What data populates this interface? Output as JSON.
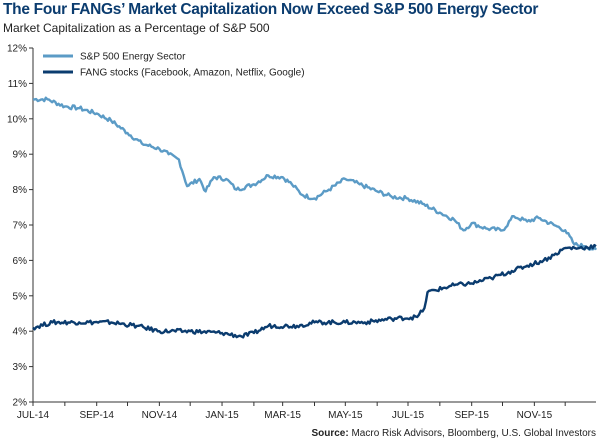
{
  "title": "The Four FANGs’ Market Capitalization Now Exceed S&P 500 Energy Sector",
  "subtitle": "Market Capitalization as a Percentage of S&P 500",
  "source_label": "Source:",
  "source_text": " Macro Risk Advisors, Bloomberg, U.S. Global Investors",
  "chart_data": {
    "type": "line",
    "title": "The Four FANGs’ Market Capitalization Now Exceed S&P 500 Energy Sector",
    "subtitle": "Market Capitalization as a Percentage of S&P 500",
    "x_tick_labels": [
      "JUL-14",
      "SEP-14",
      "NOV-14",
      "JAN-15",
      "MAR-15",
      "MAY-15",
      "JUL-15",
      "SEP-15",
      "NOV-15"
    ],
    "y_tick_labels": [
      "2%",
      "3%",
      "4%",
      "5%",
      "6%",
      "7%",
      "8%",
      "9%",
      "10%",
      "11%",
      "12%"
    ],
    "ylim": [
      2,
      12
    ],
    "xlim": [
      "2014-07-01",
      "2015-12-31"
    ],
    "grid": false,
    "legend_position": "top-left",
    "series": [
      {
        "name": "S&P 500 Energy Sector",
        "color": "#5b9bc6",
        "points": [
          [
            "2014-07-01",
            10.55
          ],
          [
            "2014-07-15",
            10.55
          ],
          [
            "2014-08-01",
            10.35
          ],
          [
            "2014-08-15",
            10.3
          ],
          [
            "2014-09-01",
            10.15
          ],
          [
            "2014-09-15",
            9.95
          ],
          [
            "2014-10-01",
            9.6
          ],
          [
            "2014-10-15",
            9.3
          ],
          [
            "2014-11-01",
            9.15
          ],
          [
            "2014-11-10",
            9.0
          ],
          [
            "2014-11-20",
            8.85
          ],
          [
            "2014-11-28",
            8.1
          ],
          [
            "2014-12-10",
            8.3
          ],
          [
            "2014-12-16",
            7.95
          ],
          [
            "2014-12-24",
            8.35
          ],
          [
            "2015-01-05",
            8.3
          ],
          [
            "2015-01-15",
            8.0
          ],
          [
            "2015-02-01",
            8.15
          ],
          [
            "2015-02-15",
            8.4
          ],
          [
            "2015-03-01",
            8.35
          ],
          [
            "2015-03-10",
            8.15
          ],
          [
            "2015-03-20",
            7.85
          ],
          [
            "2015-04-01",
            7.75
          ],
          [
            "2015-04-15",
            8.0
          ],
          [
            "2015-05-01",
            8.3
          ],
          [
            "2015-05-15",
            8.15
          ],
          [
            "2015-06-01",
            7.95
          ],
          [
            "2015-06-15",
            7.8
          ],
          [
            "2015-07-01",
            7.75
          ],
          [
            "2015-07-15",
            7.6
          ],
          [
            "2015-08-01",
            7.35
          ],
          [
            "2015-08-15",
            7.15
          ],
          [
            "2015-08-24",
            6.85
          ],
          [
            "2015-09-01",
            7.05
          ],
          [
            "2015-09-15",
            6.9
          ],
          [
            "2015-10-01",
            6.85
          ],
          [
            "2015-10-12",
            7.25
          ],
          [
            "2015-10-25",
            7.1
          ],
          [
            "2015-11-05",
            7.2
          ],
          [
            "2015-11-20",
            7.0
          ],
          [
            "2015-12-01",
            6.85
          ],
          [
            "2015-12-10",
            6.45
          ],
          [
            "2015-12-20",
            6.4
          ],
          [
            "2015-12-31",
            6.3
          ]
        ]
      },
      {
        "name": "FANG stocks (Facebook, Amazon, Netflix, Google)",
        "color": "#0b3c6f",
        "points": [
          [
            "2014-07-01",
            4.1
          ],
          [
            "2014-07-20",
            4.25
          ],
          [
            "2014-08-15",
            4.25
          ],
          [
            "2014-09-15",
            4.25
          ],
          [
            "2014-10-10",
            4.15
          ],
          [
            "2014-11-01",
            4.0
          ],
          [
            "2014-12-01",
            4.0
          ],
          [
            "2015-01-01",
            3.95
          ],
          [
            "2015-01-20",
            3.85
          ],
          [
            "2015-02-01",
            3.95
          ],
          [
            "2015-02-15",
            4.15
          ],
          [
            "2015-03-15",
            4.15
          ],
          [
            "2015-04-01",
            4.25
          ],
          [
            "2015-05-01",
            4.25
          ],
          [
            "2015-05-20",
            4.25
          ],
          [
            "2015-06-15",
            4.35
          ],
          [
            "2015-07-10",
            4.4
          ],
          [
            "2015-07-17",
            4.65
          ],
          [
            "2015-07-20",
            5.1
          ],
          [
            "2015-08-15",
            5.3
          ],
          [
            "2015-09-01",
            5.35
          ],
          [
            "2015-09-20",
            5.5
          ],
          [
            "2015-10-10",
            5.7
          ],
          [
            "2015-10-25",
            5.85
          ],
          [
            "2015-11-10",
            6.0
          ],
          [
            "2015-11-20",
            6.15
          ],
          [
            "2015-12-01",
            6.35
          ],
          [
            "2015-12-15",
            6.35
          ],
          [
            "2015-12-31",
            6.4
          ]
        ]
      }
    ]
  }
}
